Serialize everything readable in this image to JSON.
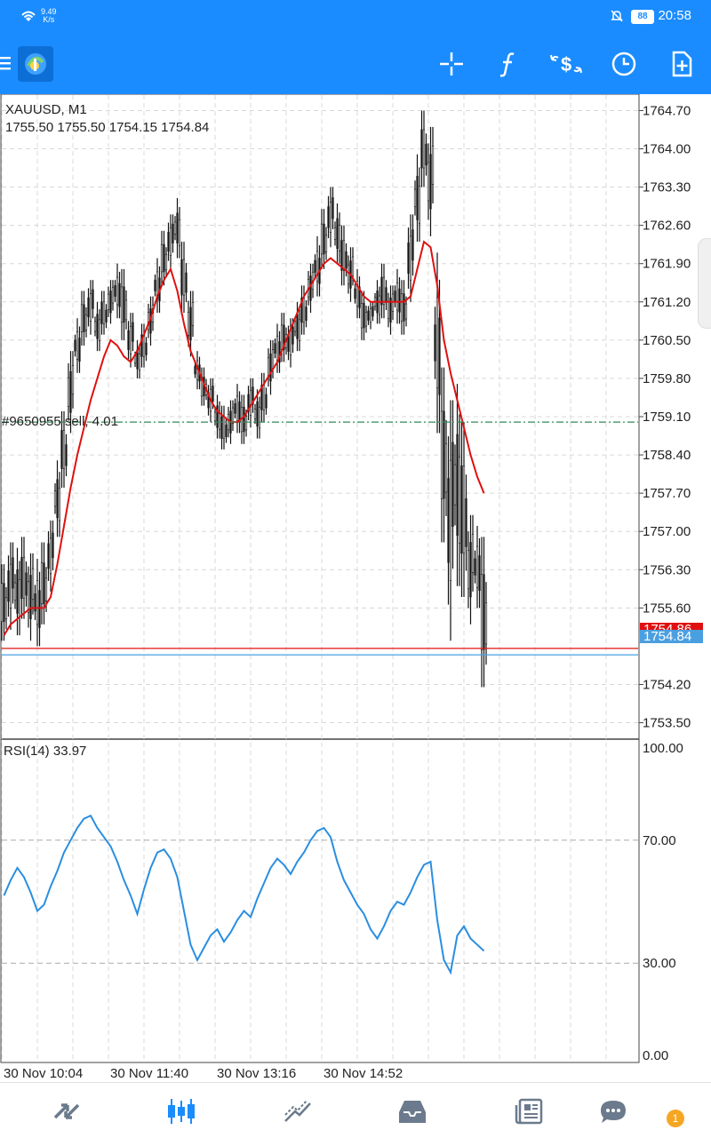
{
  "status_bar": {
    "net_speed_value": "9.49",
    "net_speed_unit": "K/s",
    "battery": "88",
    "time": "20:58"
  },
  "toolbar": {
    "icons": [
      "menu-icon",
      "app-logo-icon",
      "crosshair-icon",
      "indicators-icon",
      "symbol-dollar-icon",
      "timeframe-clock-icon",
      "new-order-icon"
    ]
  },
  "chart_header": {
    "symbol": "XAUUSD, M1",
    "ohlc": "1755.50 1755.50 1754.15 1754.84"
  },
  "order_line_label": "#9650955 sell, 4.01",
  "price_axis": {
    "ticks": [
      "1764.70",
      "1764.00",
      "1763.30",
      "1762.60",
      "1761.90",
      "1761.20",
      "1760.50",
      "1759.80",
      "1759.10",
      "1758.40",
      "1757.70",
      "1757.00",
      "1756.30",
      "1755.60",
      "1754.20",
      "1753.50"
    ],
    "ask_tag": "1754.86",
    "bid_tag": "1754.84"
  },
  "rsi": {
    "label": "RSI(14) 33.97",
    "ticks": [
      "100.00",
      "70.00",
      "30.00",
      "0.00"
    ]
  },
  "time_axis": {
    "ticks": [
      "30 Nov 10:04",
      "30 Nov 11:40",
      "30 Nov 13:16",
      "30 Nov 14:52"
    ]
  },
  "colors": {
    "brand_blue": "#1a8cff",
    "ma_red": "#e01010",
    "rsi_blue": "#2a8ee0",
    "order_green": "#2e8b57",
    "bid_blue": "#4a9fe0",
    "ask_red": "#e01010"
  },
  "bottom_nav": {
    "items": [
      "quotes-icon",
      "chart-icon",
      "trade-icon",
      "history-icon",
      "news-icon",
      "chat-icon"
    ],
    "badge": "1"
  },
  "chart_data": {
    "type": "candlestick",
    "symbol": "XAUUSD",
    "timeframe": "M1",
    "ylim": [
      1753.2,
      1765.0
    ],
    "rsi_ylim": [
      0,
      100
    ],
    "rsi_levels": [
      30,
      70
    ],
    "price_levels": {
      "order_sell": 1759.0,
      "ask": 1754.86,
      "bid": 1754.84
    },
    "x_ticks": [
      "30 Nov 10:04",
      "30 Nov 11:40",
      "30 Nov 13:16",
      "30 Nov 14:52"
    ],
    "price_envelope": [
      [
        1756.4,
        1755.0
      ],
      [
        1756.8,
        1755.2
      ],
      [
        1756.7,
        1755.1
      ],
      [
        1756.9,
        1755.4
      ],
      [
        1756.6,
        1755.0
      ],
      [
        1756.5,
        1754.9
      ],
      [
        1756.8,
        1755.3
      ],
      [
        1757.2,
        1755.9
      ],
      [
        1758.3,
        1756.9
      ],
      [
        1759.2,
        1757.8
      ],
      [
        1760.3,
        1758.8
      ],
      [
        1760.9,
        1759.9
      ],
      [
        1761.4,
        1760.4
      ],
      [
        1761.6,
        1760.6
      ],
      [
        1761.2,
        1760.3
      ],
      [
        1761.4,
        1760.6
      ],
      [
        1761.6,
        1760.8
      ],
      [
        1761.9,
        1760.9
      ],
      [
        1761.8,
        1760.5
      ],
      [
        1761.0,
        1760.0
      ],
      [
        1760.5,
        1759.8
      ],
      [
        1760.8,
        1760.0
      ],
      [
        1761.3,
        1760.4
      ],
      [
        1762.0,
        1761.0
      ],
      [
        1762.5,
        1761.5
      ],
      [
        1762.8,
        1761.8
      ],
      [
        1763.1,
        1762.0
      ],
      [
        1762.3,
        1761.0
      ],
      [
        1761.4,
        1760.2
      ],
      [
        1760.3,
        1759.6
      ],
      [
        1760.0,
        1759.3
      ],
      [
        1759.8,
        1759.0
      ],
      [
        1759.5,
        1758.7
      ],
      [
        1759.3,
        1758.5
      ],
      [
        1759.4,
        1758.6
      ],
      [
        1759.7,
        1758.8
      ],
      [
        1759.5,
        1758.6
      ],
      [
        1759.8,
        1758.9
      ],
      [
        1759.6,
        1758.7
      ],
      [
        1759.9,
        1759.0
      ],
      [
        1760.5,
        1759.5
      ],
      [
        1760.8,
        1759.9
      ],
      [
        1761.0,
        1760.1
      ],
      [
        1760.9,
        1760.0
      ],
      [
        1761.2,
        1760.3
      ],
      [
        1761.5,
        1760.6
      ],
      [
        1761.9,
        1761.0
      ],
      [
        1762.4,
        1761.3
      ],
      [
        1762.9,
        1761.8
      ],
      [
        1763.3,
        1762.2
      ],
      [
        1763.0,
        1761.9
      ],
      [
        1762.6,
        1761.5
      ],
      [
        1762.2,
        1761.2
      ],
      [
        1761.8,
        1760.9
      ],
      [
        1761.4,
        1760.5
      ],
      [
        1761.2,
        1760.7
      ],
      [
        1761.6,
        1760.8
      ],
      [
        1761.9,
        1760.9
      ],
      [
        1761.5,
        1760.6
      ],
      [
        1761.8,
        1760.8
      ],
      [
        1761.6,
        1760.6
      ],
      [
        1762.8,
        1761.2
      ],
      [
        1763.9,
        1762.3
      ],
      [
        1764.7,
        1763.3
      ],
      [
        1764.4,
        1762.4
      ],
      [
        1762.1,
        1758.8
      ],
      [
        1760.0,
        1756.8
      ],
      [
        1759.4,
        1755.0
      ],
      [
        1759.7,
        1756.0
      ],
      [
        1759.0,
        1755.8
      ],
      [
        1757.3,
        1755.3
      ],
      [
        1757.1,
        1755.6
      ],
      [
        1756.9,
        1754.15
      ]
    ],
    "ma_line": [
      1755.1,
      1755.3,
      1755.4,
      1755.5,
      1755.6,
      1755.6,
      1755.6,
      1755.8,
      1756.4,
      1757.1,
      1757.8,
      1758.4,
      1758.9,
      1759.4,
      1759.8,
      1760.2,
      1760.5,
      1760.4,
      1760.2,
      1760.1,
      1760.3,
      1760.6,
      1760.9,
      1761.3,
      1761.6,
      1761.8,
      1761.4,
      1760.8,
      1760.3,
      1760.0,
      1759.7,
      1759.4,
      1759.2,
      1759.1,
      1759.0,
      1759.0,
      1759.1,
      1759.3,
      1759.5,
      1759.7,
      1759.9,
      1760.1,
      1760.4,
      1760.7,
      1761.0,
      1761.3,
      1761.5,
      1761.7,
      1761.9,
      1762.0,
      1761.9,
      1761.8,
      1761.7,
      1761.5,
      1761.3,
      1761.2,
      1761.2,
      1761.2,
      1761.2,
      1761.2,
      1761.2,
      1761.3,
      1761.8,
      1762.3,
      1762.2,
      1761.5,
      1760.5,
      1759.9,
      1759.4,
      1758.9,
      1758.4,
      1758.0,
      1757.7
    ],
    "rsi_values": [
      52,
      57,
      61,
      58,
      53,
      47,
      49,
      55,
      60,
      66,
      70,
      74,
      77,
      78,
      74,
      71,
      68,
      63,
      57,
      52,
      46,
      54,
      61,
      66,
      67,
      64,
      58,
      47,
      36,
      31,
      35,
      39,
      41,
      37,
      40,
      44,
      47,
      45,
      51,
      56,
      61,
      64,
      62,
      59,
      63,
      66,
      70,
      73,
      74,
      71,
      63,
      57,
      53,
      49,
      46,
      41,
      38,
      42,
      47,
      50,
      49,
      53,
      58,
      62,
      63,
      44,
      31,
      27,
      39,
      42,
      38,
      36,
      34
    ]
  }
}
